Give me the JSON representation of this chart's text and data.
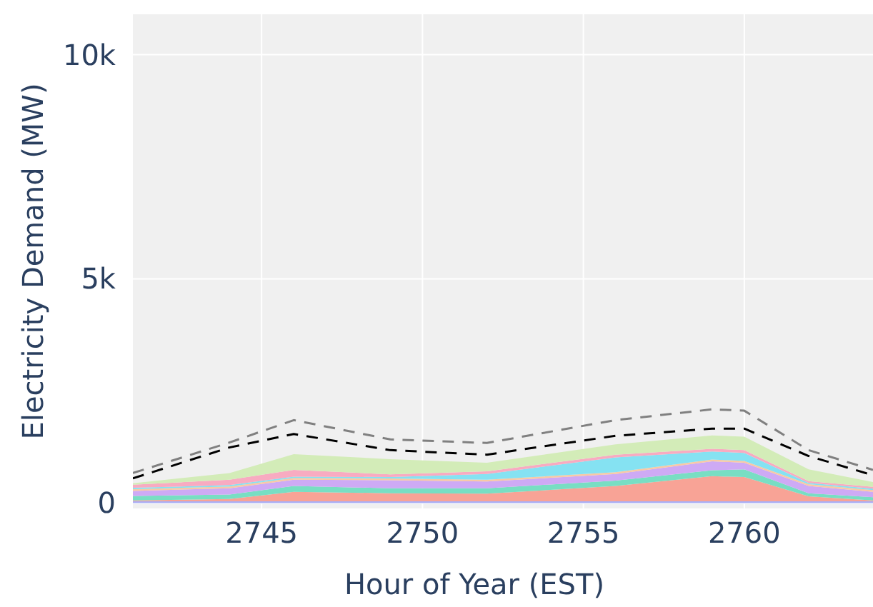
{
  "chart_data": {
    "type": "area",
    "stacked": true,
    "xlabel": "Hour of Year (EST)",
    "ylabel": "Electricity Demand (MW)",
    "x": [
      2741,
      2744,
      2746,
      2749,
      2752,
      2756,
      2759,
      2760,
      2762,
      2764
    ],
    "xlim": [
      2741,
      2764
    ],
    "xticks": [
      2745,
      2750,
      2755,
      2760
    ],
    "ylim": [
      -120,
      10900
    ],
    "yticks": [
      0,
      {
        "value": 5000,
        "label": "5k"
      },
      {
        "value": 10000,
        "label": "10k"
      }
    ],
    "grid": true,
    "line_style": "dashed",
    "series": [
      {
        "color": "#aaaff5",
        "values": [
          40,
          40,
          40,
          40,
          40,
          40,
          40,
          40,
          40,
          40
        ]
      },
      {
        "color": "#f8a396",
        "values": [
          20,
          50,
          210,
          180,
          170,
          340,
          560,
          540,
          110,
          20
        ]
      },
      {
        "color": "#78dec3",
        "values": [
          100,
          100,
          130,
          110,
          120,
          120,
          130,
          170,
          70,
          70
        ]
      },
      {
        "color": "#ceaaf5",
        "values": [
          110,
          140,
          140,
          180,
          150,
          150,
          200,
          150,
          160,
          120
        ]
      },
      {
        "color": "#f8c9a5",
        "values": [
          40,
          40,
          40,
          40,
          40,
          40,
          40,
          40,
          40,
          40
        ]
      },
      {
        "color": "#85e2f2",
        "values": [
          30,
          30,
          30,
          30,
          130,
          330,
          180,
          180,
          30,
          30
        ]
      },
      {
        "color": "#f8abc1",
        "values": [
          70,
          120,
          150,
          60,
          60,
          60,
          60,
          60,
          40,
          40
        ]
      },
      {
        "color": "#d3ecb8",
        "values": [
          30,
          150,
          350,
          340,
          190,
          230,
          300,
          300,
          260,
          110
        ]
      },
      {
        "type": "line",
        "color": "#000000",
        "values": [
          550,
          1240,
          1540,
          1180,
          1080,
          1500,
          1660,
          1660,
          1050,
          620
        ]
      },
      {
        "type": "line",
        "color": "#808080",
        "values": [
          670,
          1350,
          1850,
          1420,
          1340,
          1850,
          2090,
          2060,
          1180,
          740
        ]
      }
    ]
  }
}
